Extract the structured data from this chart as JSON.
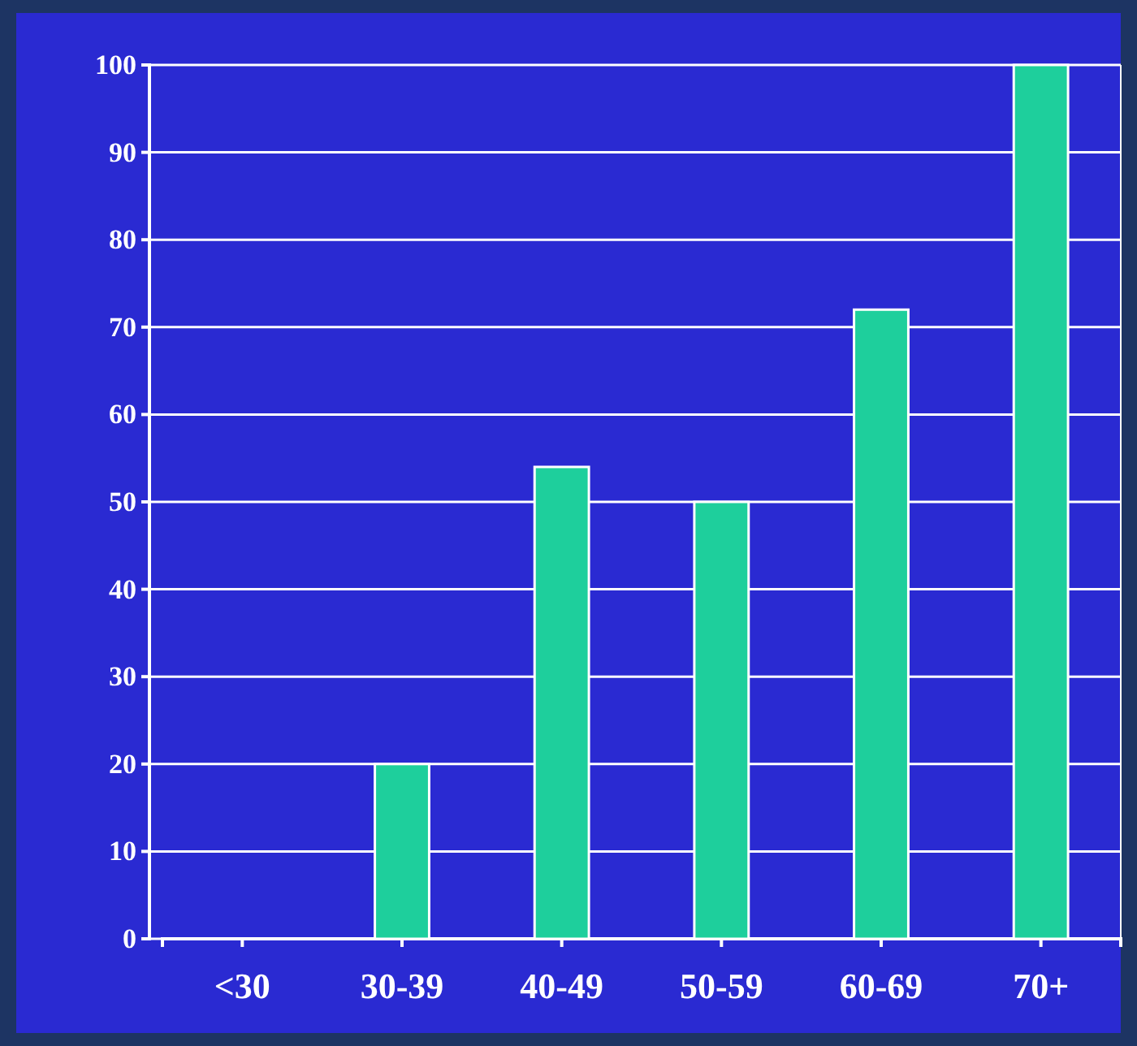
{
  "chart_data": {
    "type": "bar",
    "categories": [
      "<30",
      "30-39",
      "40-49",
      "50-59",
      "60-69",
      "70+"
    ],
    "values": [
      0,
      20,
      54,
      50,
      72,
      100
    ],
    "color": "#1ecf9c",
    "ylim": [
      0,
      100
    ],
    "yticks": [
      0,
      10,
      20,
      30,
      40,
      50,
      60,
      70,
      80,
      90,
      100
    ],
    "grid": "y"
  }
}
